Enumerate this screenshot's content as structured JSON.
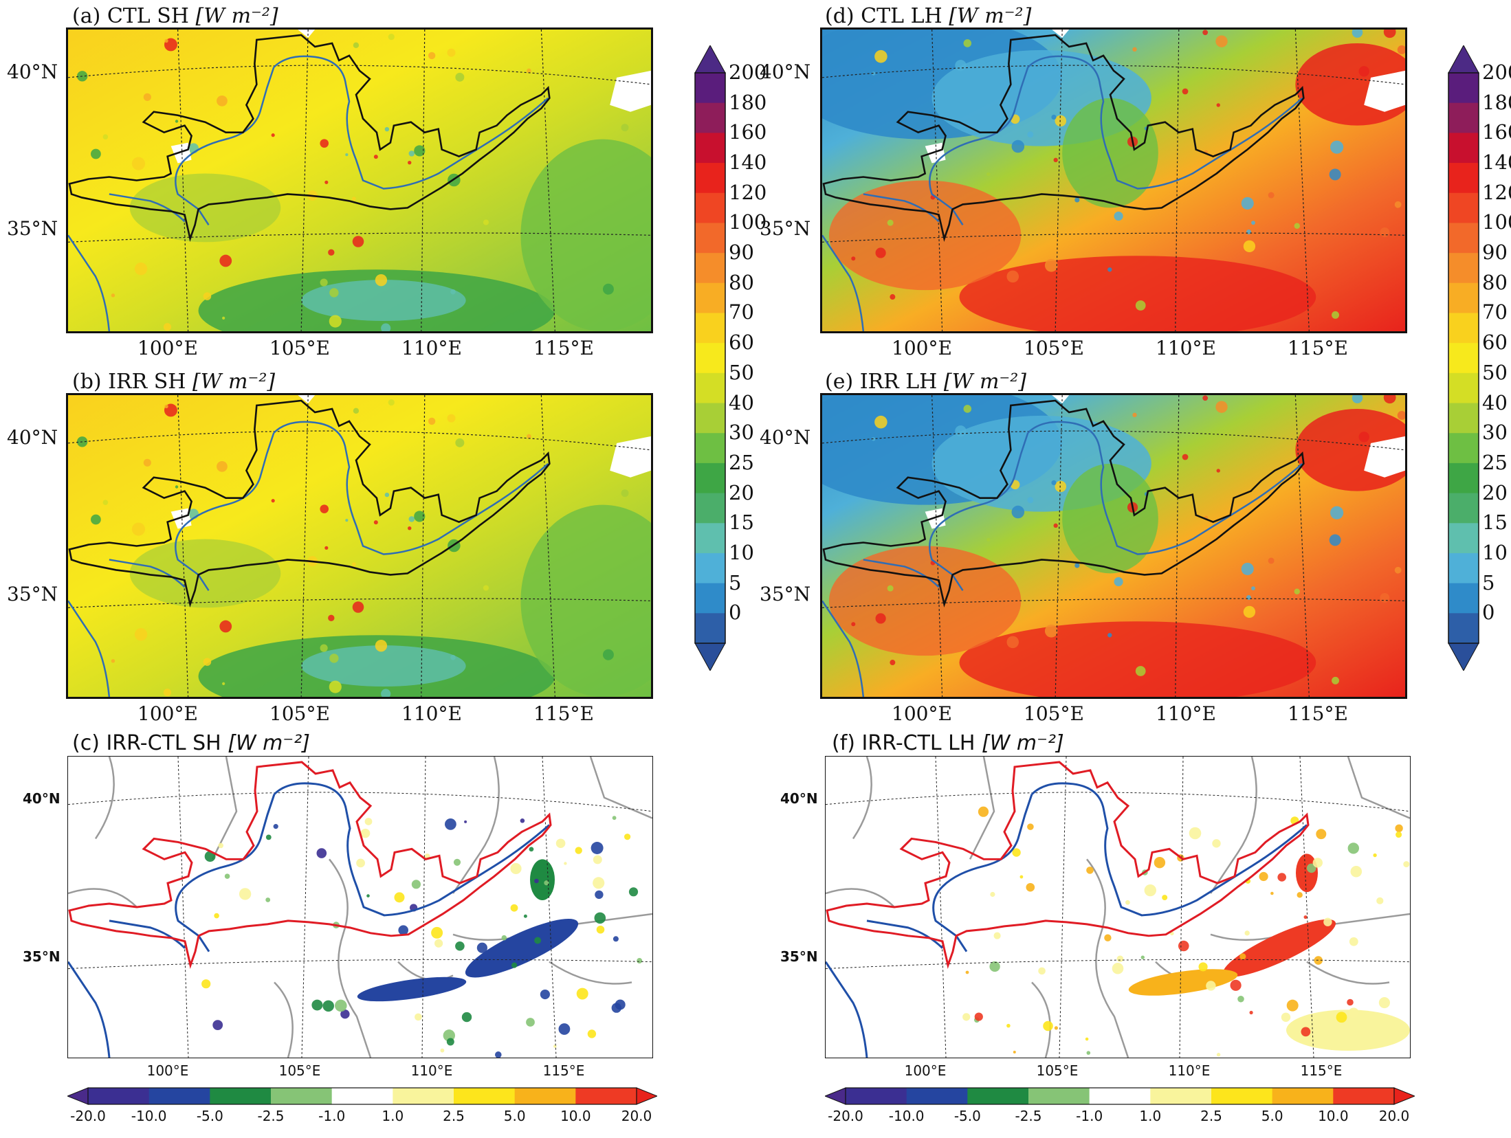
{
  "panels": {
    "a": {
      "title_prefix": "(a) CTL SH ",
      "unit": "[W m⁻²]",
      "type": "sh"
    },
    "b": {
      "title_prefix": "(b) IRR SH ",
      "unit": "[W m⁻²]",
      "type": "sh"
    },
    "c": {
      "title_prefix": "(c) IRR-CTL SH ",
      "unit": "[W m⁻²]",
      "type": "dsh"
    },
    "d": {
      "title_prefix": "(d) CTL LH ",
      "unit": "[W m⁻²]",
      "type": "lh"
    },
    "e": {
      "title_prefix": "(e) IRR LH ",
      "unit": "[W m⁻²]",
      "type": "lh"
    },
    "f": {
      "title_prefix": "(f) IRR-CTL LH ",
      "unit": "[W m⁻²]",
      "type": "dlh"
    }
  },
  "lat_labels": [
    "40°N",
    "35°N"
  ],
  "lon_labels": [
    "100°E",
    "105°E",
    "110°E",
    "115°E"
  ],
  "colorbar_abs": {
    "ticks": [
      "200",
      "180",
      "160",
      "140",
      "120",
      "100",
      "90",
      "80",
      "70",
      "60",
      "50",
      "40",
      "30",
      "25",
      "20",
      "15",
      "10",
      "5",
      "0"
    ],
    "colors": [
      "#5a1d7c",
      "#8e1d5a",
      "#c8102e",
      "#e8231c",
      "#ef4623",
      "#f2692a",
      "#f58d2a",
      "#f8ad24",
      "#f9d11e",
      "#f7e91c",
      "#d4de25",
      "#a8cf36",
      "#6ebf43",
      "#3ea645",
      "#4bae6a",
      "#5fbfae",
      "#4fb0d8",
      "#2f8bc9",
      "#2d5fa8"
    ],
    "extend_top": "#4c2a85",
    "extend_bottom": "#2a4f9a"
  },
  "colorbar_diff": {
    "ticks": [
      "-20.0",
      "-10.0",
      "-5.0",
      "-2.5",
      "-1.0",
      "1.0",
      "2.5",
      "5.0",
      "10.0",
      "20.0"
    ],
    "colors": [
      "#3b2f92",
      "#2545a0",
      "#1f8a42",
      "#86c476",
      "#ffffff",
      "#f9f49c",
      "#fde51c",
      "#f8b21b",
      "#ee3a24"
    ],
    "extend_left": "#4a2a8a",
    "extend_right": "#e8231c"
  }
}
